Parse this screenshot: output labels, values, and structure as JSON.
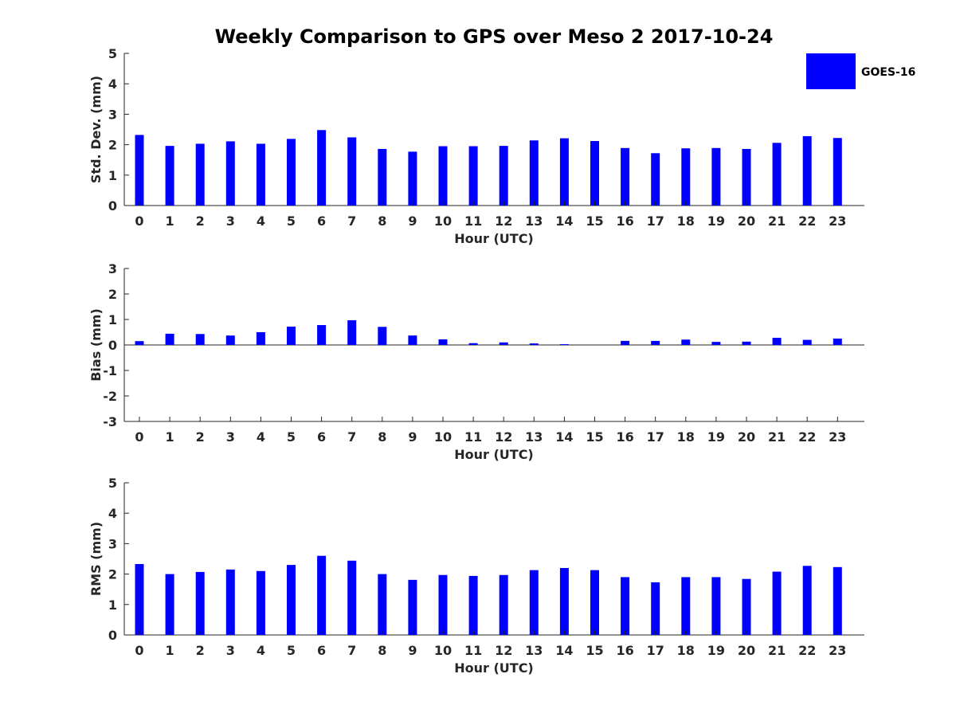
{
  "title": "Weekly Comparison to GPS over Meso 2 2017-10-24",
  "legend": {
    "label": "GOES-16",
    "color": "#0000ff"
  },
  "chart_data": [
    {
      "type": "bar",
      "categories": [
        "0",
        "1",
        "2",
        "3",
        "4",
        "5",
        "6",
        "7",
        "8",
        "9",
        "10",
        "11",
        "12",
        "13",
        "14",
        "15",
        "16",
        "17",
        "18",
        "19",
        "20",
        "21",
        "22",
        "23"
      ],
      "series": [
        {
          "name": "GOES-16",
          "values": [
            2.32,
            1.96,
            2.03,
            2.11,
            2.03,
            2.19,
            2.48,
            2.24,
            1.86,
            1.77,
            1.95,
            1.95,
            1.96,
            2.14,
            2.21,
            2.12,
            1.89,
            1.72,
            1.88,
            1.89,
            1.86,
            2.06,
            2.28,
            2.22
          ]
        }
      ],
      "xlabel": "Hour (UTC)",
      "ylabel": "Std. Dev. (mm)",
      "ylim": [
        0,
        5
      ],
      "yticks": [
        "0",
        "1",
        "2",
        "3",
        "4",
        "5"
      ]
    },
    {
      "type": "bar",
      "categories": [
        "0",
        "1",
        "2",
        "3",
        "4",
        "5",
        "6",
        "7",
        "8",
        "9",
        "10",
        "11",
        "12",
        "13",
        "14",
        "15",
        "16",
        "17",
        "18",
        "19",
        "20",
        "21",
        "22",
        "23"
      ],
      "series": [
        {
          "name": "GOES-16",
          "values": [
            0.15,
            0.44,
            0.43,
            0.37,
            0.5,
            0.72,
            0.78,
            0.97,
            0.71,
            0.37,
            0.22,
            0.07,
            0.1,
            0.06,
            0.03,
            0.0,
            0.16,
            0.16,
            0.21,
            0.12,
            0.13,
            0.28,
            0.2,
            0.25
          ]
        }
      ],
      "xlabel": "Hour (UTC)",
      "ylabel": "Bias (mm)",
      "ylim": [
        -3,
        3
      ],
      "yticks": [
        "-3",
        "-2",
        "-1",
        "0",
        "1",
        "2",
        "3"
      ]
    },
    {
      "type": "bar",
      "categories": [
        "0",
        "1",
        "2",
        "3",
        "4",
        "5",
        "6",
        "7",
        "8",
        "9",
        "10",
        "11",
        "12",
        "13",
        "14",
        "15",
        "16",
        "17",
        "18",
        "19",
        "20",
        "21",
        "22",
        "23"
      ],
      "series": [
        {
          "name": "GOES-16",
          "values": [
            2.33,
            2.0,
            2.07,
            2.15,
            2.1,
            2.3,
            2.6,
            2.44,
            2.0,
            1.81,
            1.97,
            1.94,
            1.97,
            2.13,
            2.2,
            2.13,
            1.9,
            1.73,
            1.9,
            1.9,
            1.84,
            2.08,
            2.27,
            2.23
          ]
        }
      ],
      "xlabel": "Hour (UTC)",
      "ylabel": "RMS (mm)",
      "ylim": [
        0,
        5
      ],
      "yticks": [
        "0",
        "1",
        "2",
        "3",
        "4",
        "5"
      ]
    }
  ]
}
